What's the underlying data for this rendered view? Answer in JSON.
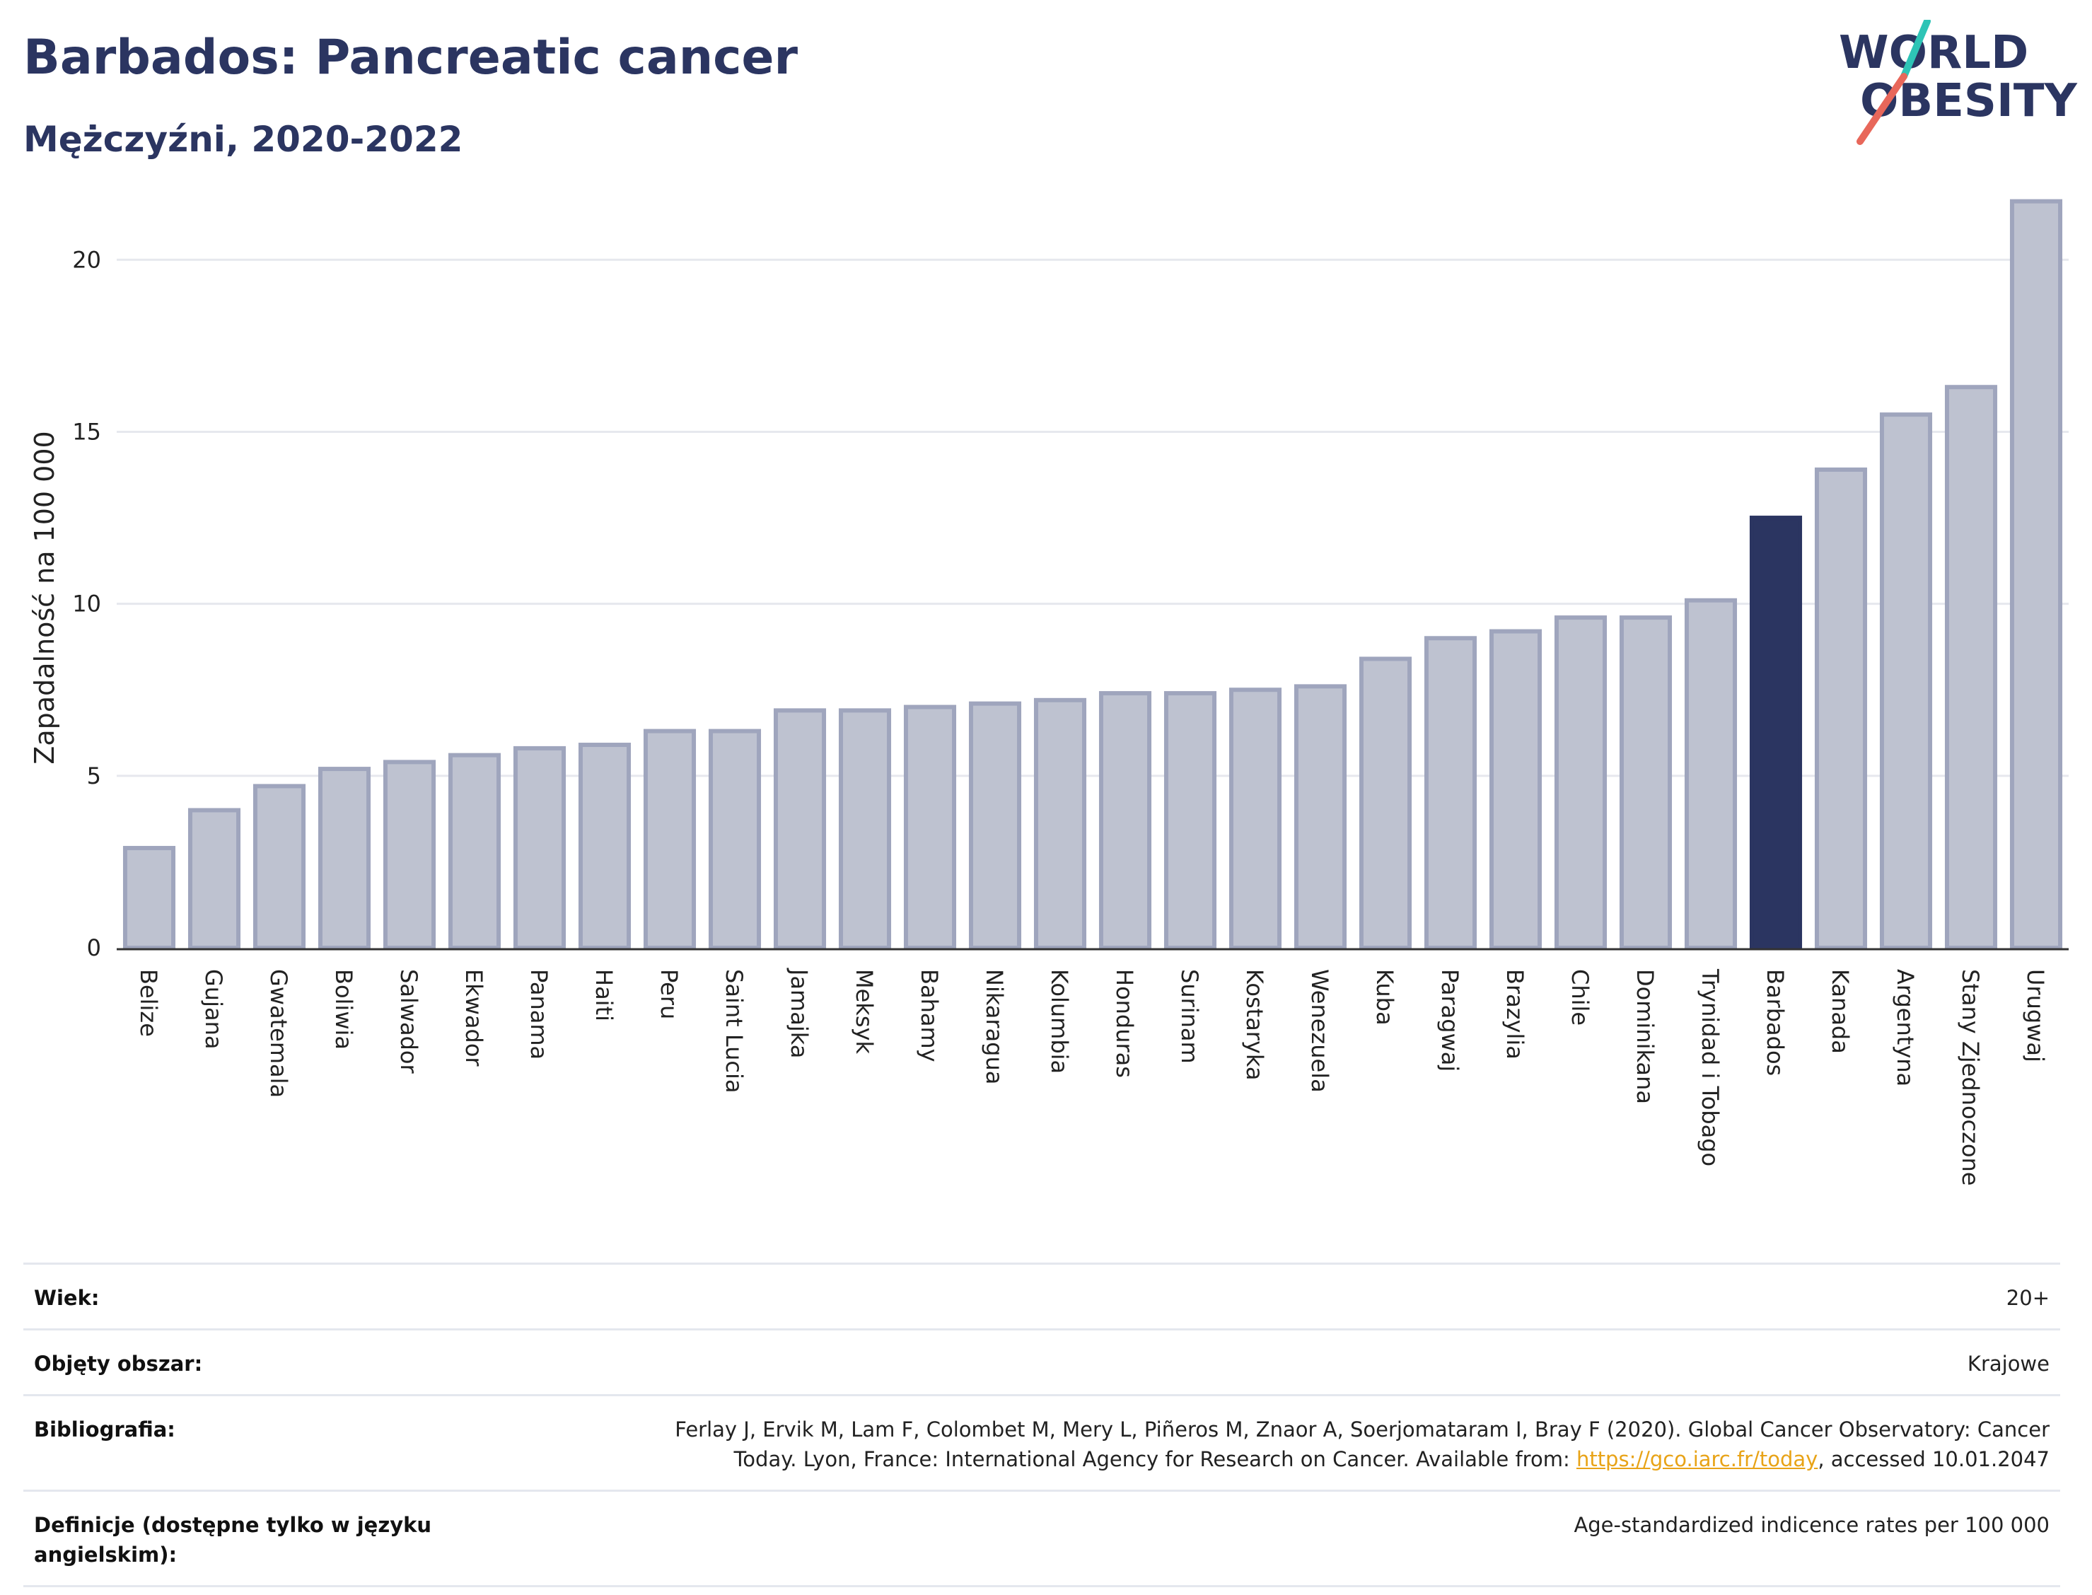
{
  "header": {
    "title": "Barbados: Pancreatic cancer",
    "subtitle": "Mężczyźni, 2020-2022"
  },
  "logo": {
    "line1": "WORLD",
    "line2": "OBESITY"
  },
  "colors": {
    "bar": "#bec2d0",
    "bar_stroke": "#9fa5bd",
    "highlight": "#2b3561",
    "title": "#2b3561"
  },
  "chart_data": {
    "type": "bar",
    "ylabel": "Zapadalność na 100 000",
    "ylim": [
      0,
      22
    ],
    "yticks": [
      0,
      5,
      10,
      15,
      20
    ],
    "grid": true,
    "highlight": "Barbados",
    "categories": [
      "Belize",
      "Gujana",
      "Gwatemala",
      "Boliwia",
      "Salwador",
      "Ekwador",
      "Panama",
      "Haiti",
      "Peru",
      "Saint Lucia",
      "Jamajka",
      "Meksyk",
      "Bahamy",
      "Nikaragua",
      "Kolumbia",
      "Honduras",
      "Surinam",
      "Kostaryka",
      "Wenezuela",
      "Kuba",
      "Paragwaj",
      "Brazylia",
      "Chile",
      "Dominikana",
      "Trynidad i Tobago",
      "Barbados",
      "Kanada",
      "Argentyna",
      "Stany Zjednoczone",
      "Urugwaj"
    ],
    "values": [
      2.9,
      4.0,
      4.7,
      5.2,
      5.4,
      5.6,
      5.8,
      5.9,
      6.3,
      6.3,
      6.9,
      6.9,
      7.0,
      7.1,
      7.2,
      7.4,
      7.4,
      7.5,
      7.6,
      8.4,
      9.0,
      9.2,
      9.6,
      9.6,
      10.1,
      12.5,
      13.9,
      15.5,
      16.3,
      21.7
    ]
  },
  "info": {
    "age_label": "Wiek:",
    "age_value": "20+",
    "area_label": "Objęty obszar:",
    "area_value": "Krajowe",
    "bib_label": "Bibliografia:",
    "bib_text1": "Ferlay J, Ervik M, Lam F, Colombet M, Mery L, Piñeros M, Znaor A, Soerjomataram I, Bray F (2020). Global Cancer Observatory: Cancer",
    "bib_text2": "Today. Lyon, France: International Agency for Research on Cancer. Available from: ",
    "bib_link": "https://gco.iarc.fr/today",
    "bib_text3": ", accessed 10.01.2047",
    "def_label": "Definicje (dostępne tylko w języku angielskim):",
    "def_value": "Age-standardized indicence rates per 100 000"
  }
}
